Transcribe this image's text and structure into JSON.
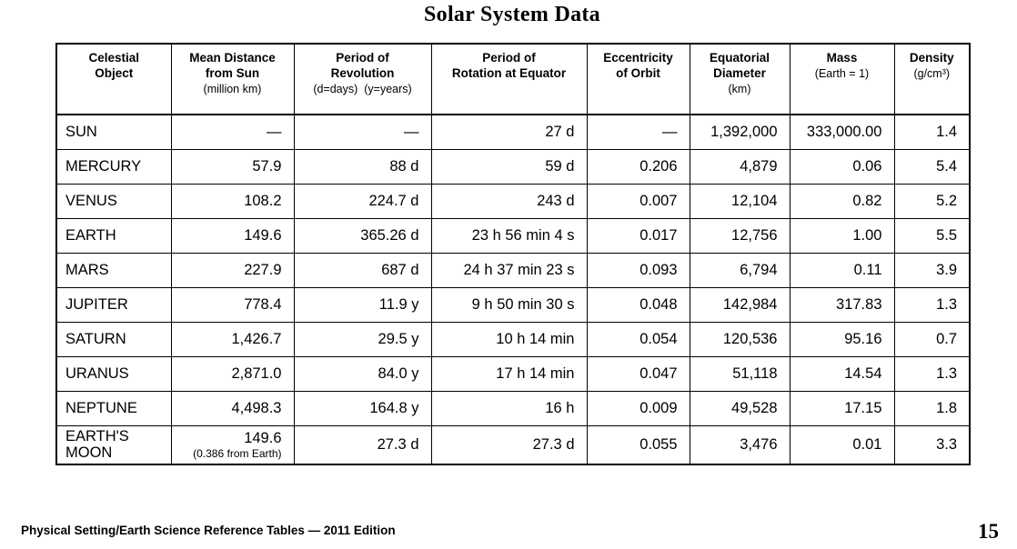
{
  "page": {
    "title": "Solar System Data",
    "footer_left": "Physical Setting/Earth Science Reference Tables — 2011 Edition",
    "page_number": "15"
  },
  "table": {
    "columns": [
      {
        "title_lines": [
          "Celestial",
          "Object"
        ],
        "unit": ""
      },
      {
        "title_lines": [
          "Mean Distance",
          "from Sun"
        ],
        "unit": "(million km)"
      },
      {
        "title_lines": [
          "Period of",
          "Revolution"
        ],
        "unit": "(d=days)  (y=years)"
      },
      {
        "title_lines": [
          "Period of",
          "Rotation at Equator"
        ],
        "unit": ""
      },
      {
        "title_lines": [
          "Eccentricity",
          "of Orbit"
        ],
        "unit": ""
      },
      {
        "title_lines": [
          "Equatorial",
          "Diameter"
        ],
        "unit": "(km)"
      },
      {
        "title_lines": [
          "Mass"
        ],
        "unit": "(Earth = 1)"
      },
      {
        "title_lines": [
          "Density"
        ],
        "unit": "(g/cm³)"
      }
    ],
    "rows": [
      {
        "name_lines": [
          "SUN"
        ],
        "values": [
          "—",
          "—",
          "27 d",
          "—",
          "1,392,000",
          "333,000.00",
          "1.4"
        ]
      },
      {
        "name_lines": [
          "MERCURY"
        ],
        "values": [
          "57.9",
          "88 d",
          "59 d",
          "0.206",
          "4,879",
          "0.06",
          "5.4"
        ]
      },
      {
        "name_lines": [
          "VENUS"
        ],
        "values": [
          "108.2",
          "224.7 d",
          "243 d",
          "0.007",
          "12,104",
          "0.82",
          "5.2"
        ]
      },
      {
        "name_lines": [
          "EARTH"
        ],
        "values": [
          "149.6",
          "365.26 d",
          "23 h 56 min 4 s",
          "0.017",
          "12,756",
          "1.00",
          "5.5"
        ]
      },
      {
        "name_lines": [
          "MARS"
        ],
        "values": [
          "227.9",
          "687 d",
          "24 h 37 min 23 s",
          "0.093",
          "6,794",
          "0.11",
          "3.9"
        ]
      },
      {
        "name_lines": [
          "JUPITER"
        ],
        "values": [
          "778.4",
          "11.9 y",
          "9 h 50 min 30 s",
          "0.048",
          "142,984",
          "317.83",
          "1.3"
        ]
      },
      {
        "name_lines": [
          "SATURN"
        ],
        "values": [
          "1,426.7",
          "29.5 y",
          "10 h 14 min",
          "0.054",
          "120,536",
          "95.16",
          "0.7"
        ]
      },
      {
        "name_lines": [
          "URANUS"
        ],
        "values": [
          "2,871.0",
          "84.0 y",
          "17 h 14 min",
          "0.047",
          "51,118",
          "14.54",
          "1.3"
        ]
      },
      {
        "name_lines": [
          "NEPTUNE"
        ],
        "values": [
          "4,498.3",
          "164.8 y",
          "16 h",
          "0.009",
          "49,528",
          "17.15",
          "1.8"
        ]
      },
      {
        "name_lines": [
          "EARTH'S",
          "MOON"
        ],
        "values": [
          "149.6",
          "27.3 d",
          "27.3 d",
          "0.055",
          "3,476",
          "0.01",
          "3.3"
        ],
        "value_notes": {
          "0": "(0.386 from Earth)"
        }
      }
    ]
  }
}
